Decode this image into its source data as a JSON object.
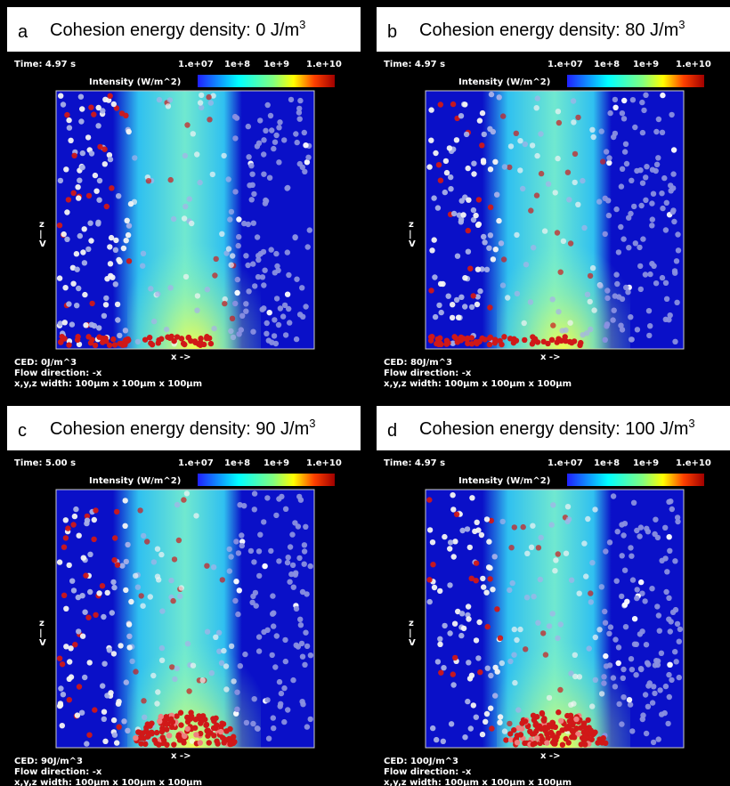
{
  "panels": [
    {
      "letter": "a",
      "title": "Cohesion energy density: 0 J/m",
      "title_sup": "3",
      "time": "Time: 4.97 s",
      "colorbar_ticks": [
        "1.e+07",
        "1e+8",
        "1e+9",
        "1.e+10"
      ],
      "colorbar_label": "Intensity (W/m^2)",
      "z_axis": [
        "z",
        "|",
        "V"
      ],
      "x_axis": "x ->",
      "ced": "CED: 0J/m^3",
      "flow": "Flow direction: -x",
      "width": "x,y,z width: 100µm x 100µm x 100µm"
    },
    {
      "letter": "b",
      "title": "Cohesion energy density: 80 J/m",
      "title_sup": "3",
      "time": "Time: 4.97 s",
      "colorbar_ticks": [
        "1.e+07",
        "1e+8",
        "1e+9",
        "1.e+10"
      ],
      "colorbar_label": "Intensity (W/m^2)",
      "z_axis": [
        "z",
        "|",
        "V"
      ],
      "x_axis": "x ->",
      "ced": "CED: 80J/m^3",
      "flow": "Flow direction: -x",
      "width": "x,y,z width: 100µm x 100µm x 100µm"
    },
    {
      "letter": "c",
      "title": "Cohesion energy density: 90 J/m",
      "title_sup": "3",
      "time": "Time: 5.00 s",
      "colorbar_ticks": [
        "1.e+07",
        "1e+8",
        "1e+9",
        "1.e+10"
      ],
      "colorbar_label": "Intensity (W/m^2)",
      "z_axis": [
        "z",
        "|",
        "V"
      ],
      "x_axis": "x ->",
      "ced": "CED: 90J/m^3",
      "flow": "Flow direction: -x",
      "width": "x,y,z width: 100µm x 100µm x 100µm"
    },
    {
      "letter": "d",
      "title": "Cohesion energy density: 100 J/m",
      "title_sup": "3",
      "time": "Time: 4.97 s",
      "colorbar_ticks": [
        "1.e+07",
        "1e+8",
        "1e+9",
        "1.e+10"
      ],
      "colorbar_label": "Intensity (W/m^2)",
      "z_axis": [
        "z",
        "|",
        "V"
      ],
      "x_axis": "x ->",
      "ced": "CED: 100J/m^3",
      "flow": "Flow direction: -x",
      "width": "x,y,z width: 100µm x 100µm x 100µm"
    }
  ]
}
